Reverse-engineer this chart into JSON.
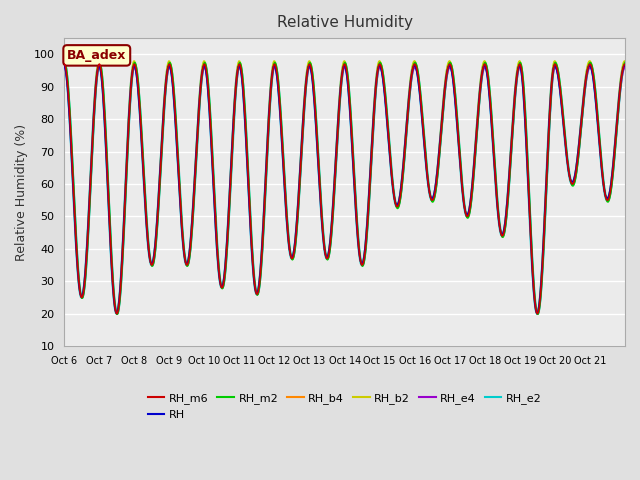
{
  "title": "Relative Humidity",
  "ylabel": "Relative Humidity (%)",
  "ylim": [
    10,
    105
  ],
  "yticks": [
    10,
    20,
    30,
    40,
    50,
    60,
    70,
    80,
    90,
    100
  ],
  "num_days": 16,
  "xtick_labels": [
    "Oct 6",
    "Oct 7",
    "Oct 8",
    "Oct 9",
    "Oct 10",
    "Oct 11",
    "Oct 12",
    "Oct 13",
    "Oct 14",
    "Oct 15",
    "Oct 16",
    "Oct 17",
    "Oct 18",
    "Oct 19",
    "Oct 20",
    "Oct 21"
  ],
  "series": [
    {
      "name": "RH_m6",
      "color": "#cc0000",
      "lw": 1.2,
      "zorder": 5
    },
    {
      "name": "RH",
      "color": "#0000cc",
      "lw": 1.2,
      "zorder": 4
    },
    {
      "name": "RH_m2",
      "color": "#00cc00",
      "lw": 1.2,
      "zorder": 3
    },
    {
      "name": "RH_b4",
      "color": "#ff8800",
      "lw": 1.2,
      "zorder": 3
    },
    {
      "name": "RH_b2",
      "color": "#cccc00",
      "lw": 1.2,
      "zorder": 3
    },
    {
      "name": "RH_e4",
      "color": "#9900cc",
      "lw": 1.2,
      "zorder": 3
    },
    {
      "name": "RH_e2",
      "color": "#00cccc",
      "lw": 2.0,
      "zorder": 2
    }
  ],
  "bg_color": "#e0e0e0",
  "plot_bg": "#ebebeb",
  "grid_color": "white",
  "annotation_text": "BA_adex",
  "annotation_color": "#8B0000",
  "annotation_bg": "#ffffcc",
  "trough_pattern": [
    25,
    20,
    35,
    35,
    28,
    26,
    37,
    37,
    35,
    53,
    55,
    50,
    44,
    20,
    60,
    55
  ],
  "plot_order": [
    6,
    3,
    4,
    5,
    2,
    1,
    0
  ]
}
